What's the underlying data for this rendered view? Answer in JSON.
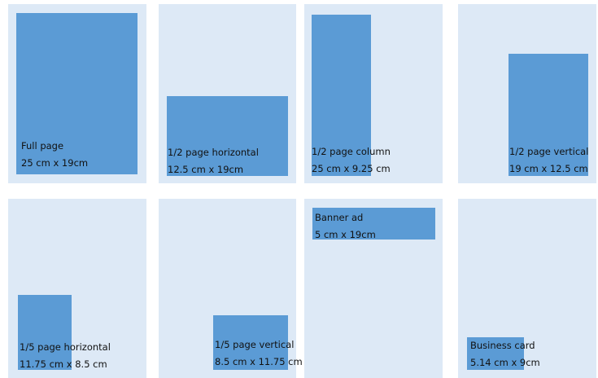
{
  "cards": [
    {
      "name": "Full page",
      "size": "25 cm x 19cm"
    },
    {
      "name": "1/2 page horizontal",
      "size": "12.5 cm x 19cm"
    },
    {
      "name": "1/2 page column",
      "size": "25 cm x 9.25 cm"
    },
    {
      "name": "1/2 page vertical",
      "size": "19 cm x 12.5 cm"
    },
    {
      "name": "1/5 page horizontal",
      "size": "11.75 cm x 8.5 cm"
    },
    {
      "name": "1/5 page vertical",
      "size": "8.5 cm x 11.75 cm"
    },
    {
      "name": "Banner ad",
      "size": "5 cm x 19cm"
    },
    {
      "name": "Business card",
      "size": "5.14 cm x 9cm"
    }
  ],
  "colors": {
    "page": "#dde9f6",
    "ad": "#5b9bd5"
  }
}
